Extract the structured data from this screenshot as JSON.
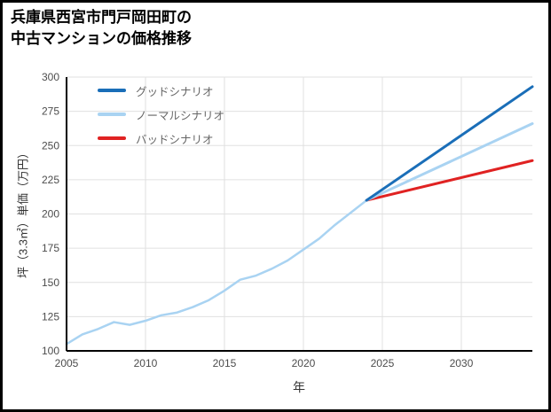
{
  "page": {
    "title": "兵庫県西宮市門戸岡田町の\n中古マンションの価格推移"
  },
  "chart_data": {
    "type": "line",
    "title": "兵庫県西宮市門戸岡田町の中古マンションの価格推移",
    "xlabel": "年",
    "ylabel": "坪（3.3㎡）単価（万円）",
    "xlim": [
      2005,
      2034.5
    ],
    "ylim": [
      100,
      300
    ],
    "xticks": [
      2005,
      2010,
      2015,
      2020,
      2025,
      2030
    ],
    "yticks": [
      100,
      125,
      150,
      175,
      200,
      225,
      250,
      275,
      300
    ],
    "grid": true,
    "legend_position": "top-left",
    "axis_color": "#000000",
    "grid_color": "#e0e0e0",
    "series": [
      {
        "id": "good",
        "name": "グッドシナリオ",
        "color": "#1a6eb8",
        "width": 3,
        "x": [
          2024,
          2034.5
        ],
        "y": [
          210,
          293
        ]
      },
      {
        "id": "normal",
        "name": "ノーマルシナリオ",
        "color": "#a9d3f2",
        "width": 3,
        "x": [
          2024,
          2034.5
        ],
        "y": [
          210,
          266
        ]
      },
      {
        "id": "bad",
        "name": "バッドシナリオ",
        "color": "#e02222",
        "width": 3,
        "x": [
          2024,
          2034.5
        ],
        "y": [
          210,
          239
        ]
      },
      {
        "id": "history",
        "color": "#a9d3f2",
        "width": 2.5,
        "in_legend": false,
        "x": [
          2005,
          2006,
          2007,
          2008,
          2009,
          2010,
          2011,
          2012,
          2013,
          2014,
          2015,
          2016,
          2017,
          2018,
          2019,
          2020,
          2021,
          2022,
          2023,
          2024
        ],
        "y": [
          105,
          112,
          116,
          121,
          119,
          122,
          126,
          128,
          132,
          137,
          144,
          152,
          155,
          160,
          166,
          174,
          182,
          192,
          201,
          210
        ]
      }
    ]
  }
}
